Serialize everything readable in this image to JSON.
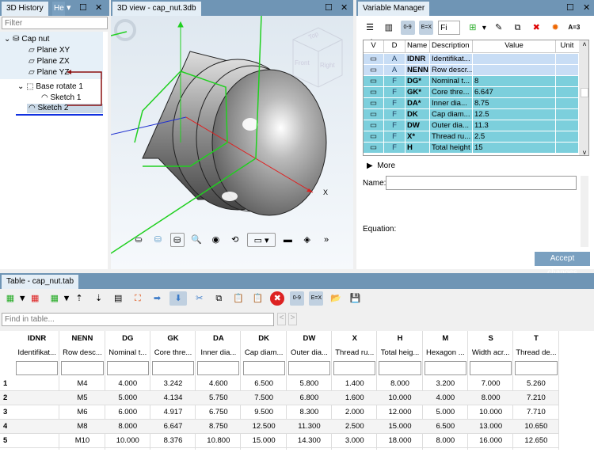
{
  "history": {
    "tab": "3D History",
    "tab2": "He",
    "filter_placeholder": "Filter",
    "items": [
      {
        "label": "Cap nut",
        "icon": "part-icon"
      },
      {
        "label": "Plane XY",
        "icon": "plane-icon"
      },
      {
        "label": "Plane ZX",
        "icon": "plane-icon"
      },
      {
        "label": "Plane YZ",
        "icon": "plane-icon"
      },
      {
        "label": "Base rotate 1",
        "icon": "rotate-feature-icon"
      },
      {
        "label": "Sketch 1",
        "icon": "sketch-icon"
      },
      {
        "label": "Sketch 2",
        "icon": "sketch-icon"
      }
    ]
  },
  "view3d": {
    "tab": "3D view - cap_nut.3db",
    "axis_x": "X",
    "cube": {
      "top": "Top",
      "front": "Front",
      "right": "Right"
    },
    "more": "»"
  },
  "varman": {
    "tab": "Variable Manager",
    "filter_value": "Fi",
    "a3": "A=3",
    "columns": [
      "V",
      "D",
      "Name",
      "Description",
      "Value",
      "Unit"
    ],
    "rows": [
      {
        "d": "A",
        "name": "IDNR",
        "desc": "Identifikat...",
        "value": "",
        "unit": ""
      },
      {
        "d": "A",
        "name": "NENN",
        "desc": "Row descr...",
        "value": "",
        "unit": ""
      },
      {
        "d": "F",
        "name": "DG*",
        "desc": "Nominal t...",
        "value": "8",
        "unit": ""
      },
      {
        "d": "F",
        "name": "GK*",
        "desc": "Core thre...",
        "value": "6.647",
        "unit": ""
      },
      {
        "d": "F",
        "name": "DA*",
        "desc": "Inner dia...",
        "value": "8.75",
        "unit": ""
      },
      {
        "d": "F",
        "name": "DK",
        "desc": "Cap diam...",
        "value": "12.5",
        "unit": ""
      },
      {
        "d": "F",
        "name": "DW",
        "desc": "Outer dia...",
        "value": "11.3",
        "unit": ""
      },
      {
        "d": "F",
        "name": "X*",
        "desc": "Thread ru...",
        "value": "2.5",
        "unit": ""
      },
      {
        "d": "F",
        "name": "H",
        "desc": "Total height",
        "value": "15",
        "unit": ""
      }
    ],
    "more": "More",
    "name_label": "Name:",
    "name_value": "",
    "equation_label": "Equation:",
    "accept": "Accept changes"
  },
  "table": {
    "tab": "Table - cap_nut.tab",
    "find_placeholder": "Find in table...",
    "columns": [
      {
        "name": "IDNR",
        "desc": "Identifikat..."
      },
      {
        "name": "NENN",
        "desc": "Row desc..."
      },
      {
        "name": "DG",
        "desc": "Nominal t..."
      },
      {
        "name": "GK",
        "desc": "Core thre..."
      },
      {
        "name": "DA",
        "desc": "Inner dia..."
      },
      {
        "name": "DK",
        "desc": "Cap diam..."
      },
      {
        "name": "DW",
        "desc": "Outer dia..."
      },
      {
        "name": "X",
        "desc": "Thread ru..."
      },
      {
        "name": "H",
        "desc": "Total heig..."
      },
      {
        "name": "M",
        "desc": "Hexagon ..."
      },
      {
        "name": "S",
        "desc": "Width acr..."
      },
      {
        "name": "T",
        "desc": "Thread de..."
      }
    ],
    "rows": [
      {
        "n": "1",
        "cells": [
          "",
          "M4",
          "4.000",
          "3.242",
          "4.600",
          "6.500",
          "5.800",
          "1.400",
          "8.000",
          "3.200",
          "7.000",
          "5.260"
        ]
      },
      {
        "n": "2",
        "cells": [
          "",
          "M5",
          "5.000",
          "4.134",
          "5.750",
          "7.500",
          "6.800",
          "1.600",
          "10.000",
          "4.000",
          "8.000",
          "7.210"
        ]
      },
      {
        "n": "3",
        "cells": [
          "",
          "M6",
          "6.000",
          "4.917",
          "6.750",
          "9.500",
          "8.300",
          "2.000",
          "12.000",
          "5.000",
          "10.000",
          "7.710"
        ]
      },
      {
        "n": "4",
        "cells": [
          "",
          "M8",
          "8.000",
          "6.647",
          "8.750",
          "12.500",
          "11.300",
          "2.500",
          "15.000",
          "6.500",
          "13.000",
          "10.650"
        ]
      },
      {
        "n": "5",
        "cells": [
          "",
          "M10",
          "10.000",
          "8.376",
          "10.800",
          "15.000",
          "14.300",
          "3.000",
          "18.000",
          "8.000",
          "16.000",
          "12.650"
        ]
      }
    ]
  },
  "colors": {
    "tabbar": "#6f95b5",
    "row_selected": "#c8ddf5",
    "row_formula": "#7ccfdc",
    "accent": "#7aa0c0"
  }
}
